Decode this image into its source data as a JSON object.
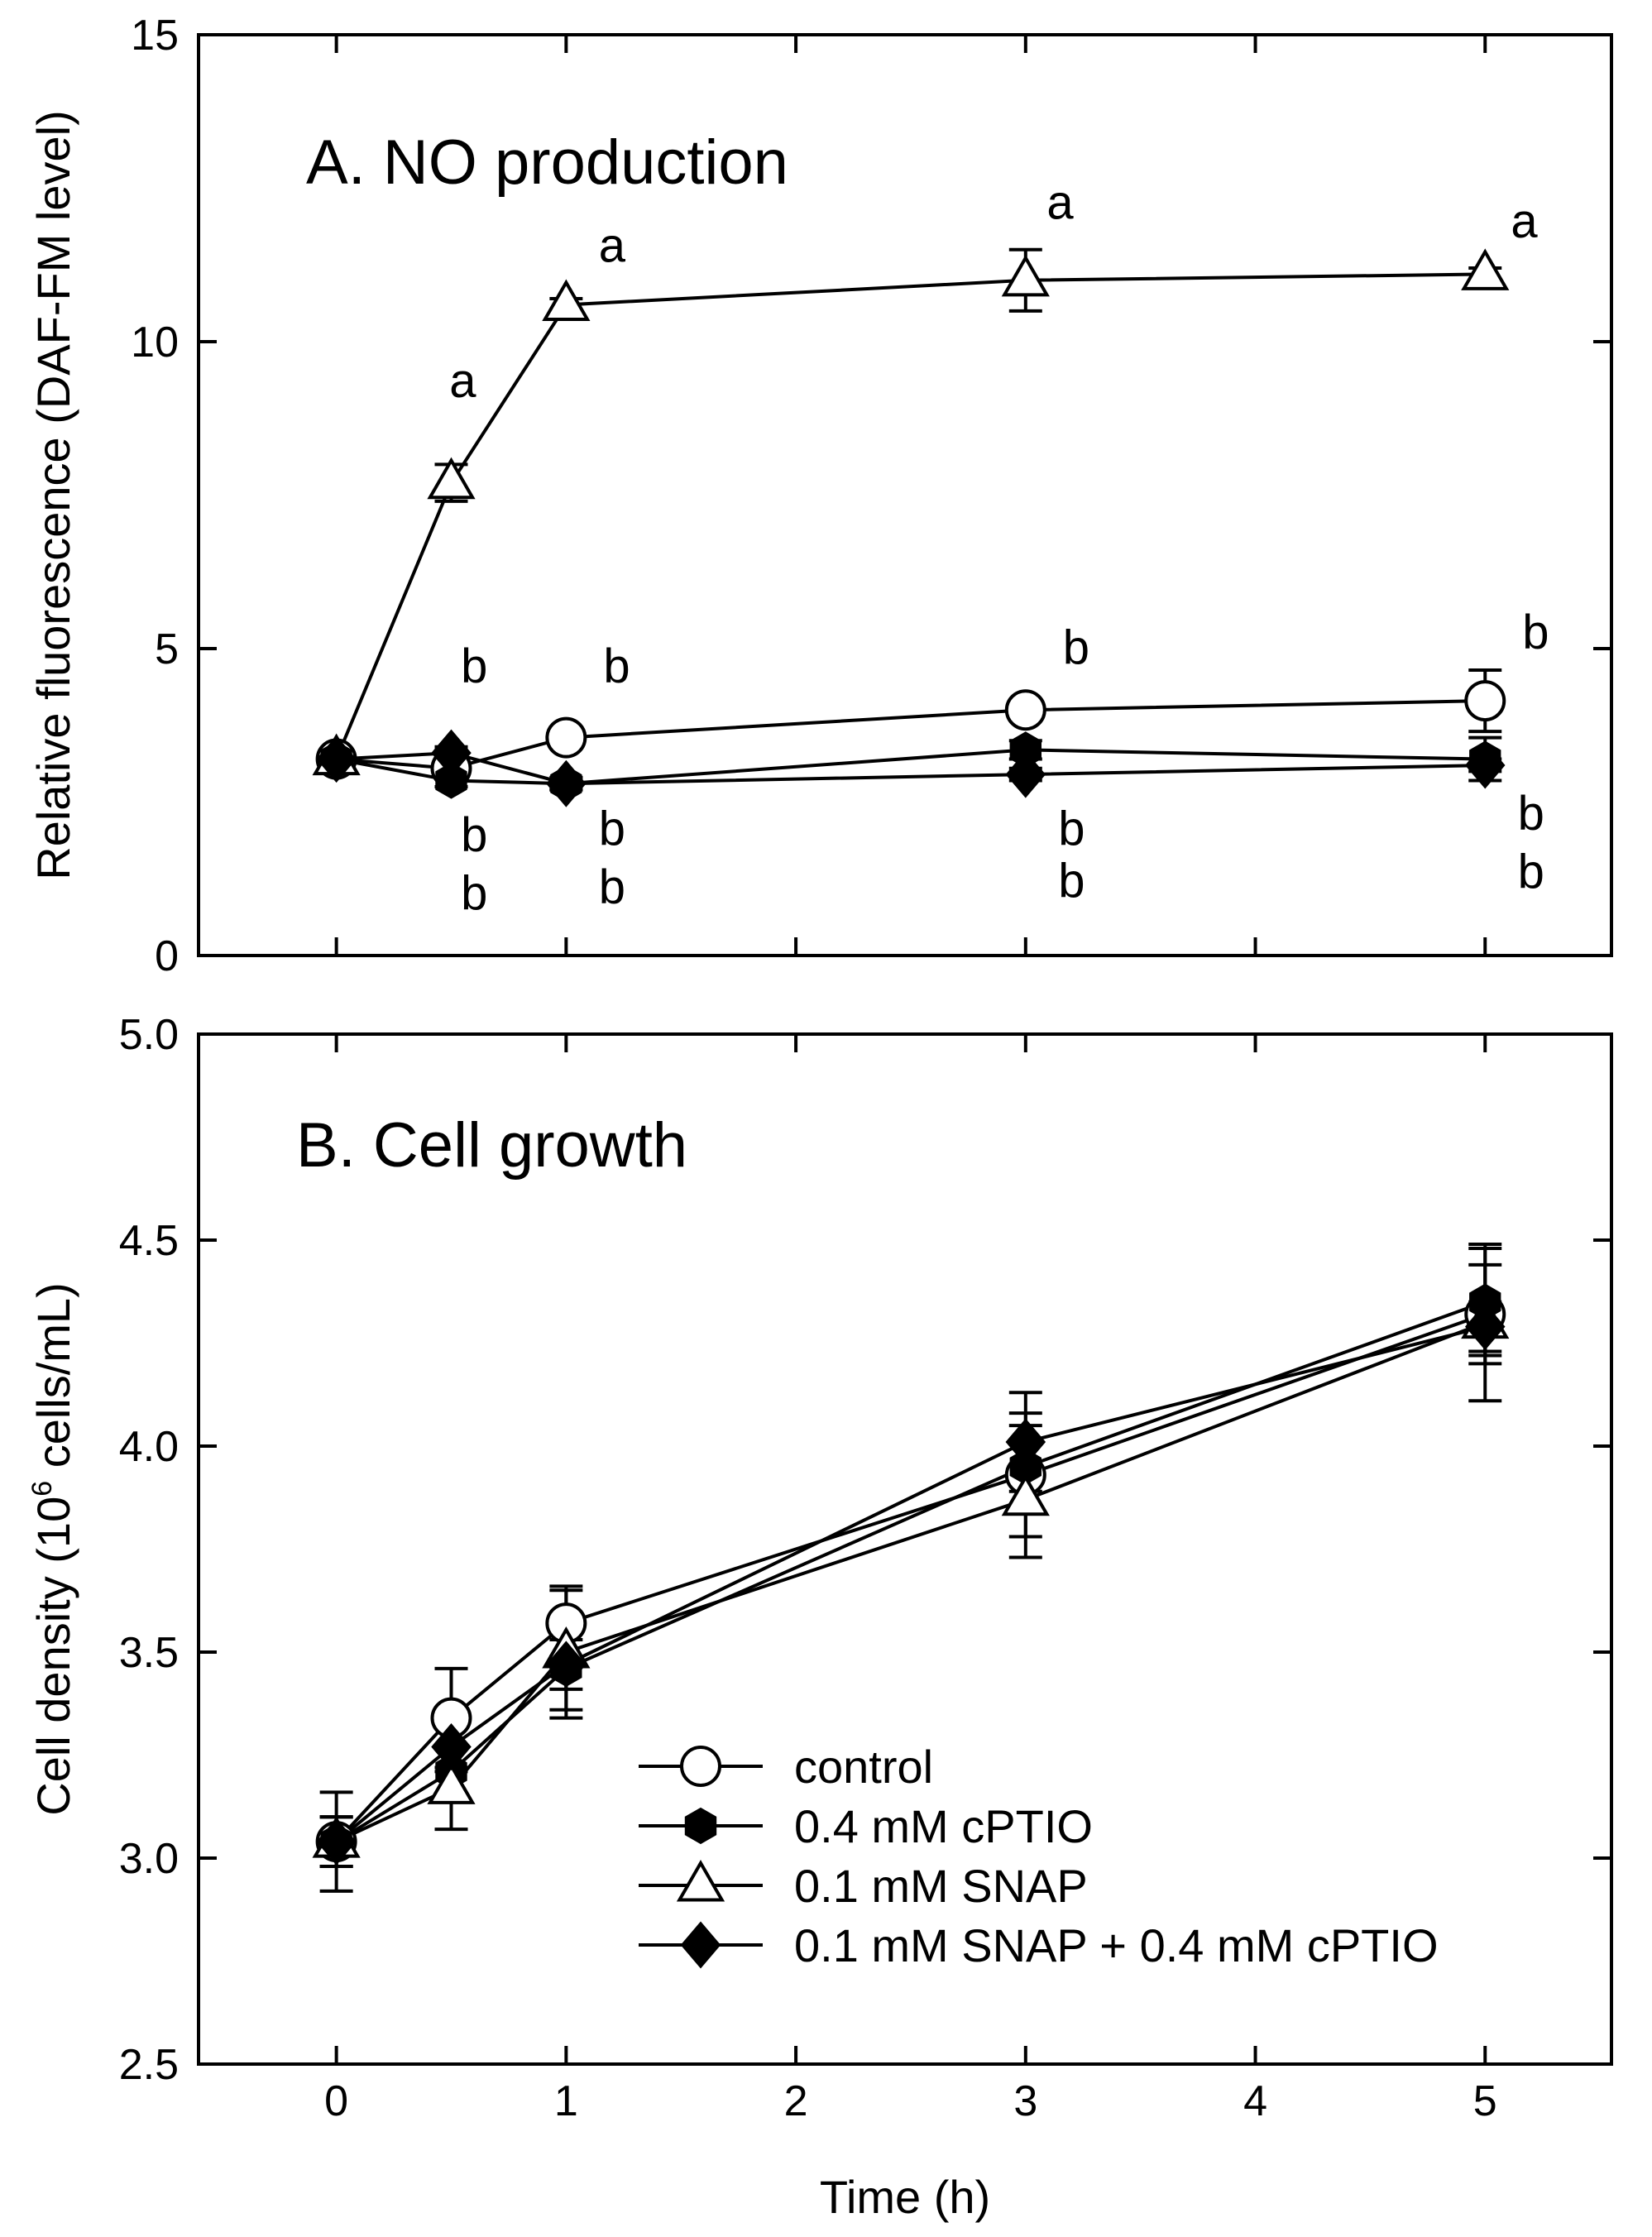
{
  "chart_data": [
    {
      "type": "line",
      "title": "A. NO production",
      "ylabel": "Relative fluorescence (DAF-FM level)",
      "xlabel": "",
      "xlim": [
        -0.6,
        5.55
      ],
      "ylim": [
        0,
        15
      ],
      "x_ticks": [
        0,
        1,
        2,
        3,
        4,
        5
      ],
      "y_ticks": [
        0,
        5,
        10,
        15
      ],
      "y_tick_labels": [
        "0",
        "5",
        "10",
        "15"
      ],
      "grid": false,
      "x": [
        0,
        0.5,
        1,
        3,
        5
      ],
      "series": [
        {
          "name": "control",
          "marker": "circle-open",
          "values": [
            3.2,
            3.05,
            3.55,
            4.0,
            4.15
          ],
          "errors": [
            0,
            0.1,
            0.1,
            0.15,
            0.5
          ]
        },
        {
          "name": "0.4 mM cPTIO",
          "marker": "hexagon-filled",
          "values": [
            3.2,
            2.85,
            2.8,
            3.35,
            3.2
          ],
          "errors": [
            0,
            0.1,
            0.1,
            0.15,
            0.35
          ]
        },
        {
          "name": "0.1 mM SNAP",
          "marker": "triangle-open",
          "values": [
            3.2,
            7.7,
            10.6,
            11.0,
            11.1
          ],
          "errors": [
            0,
            0.3,
            0.1,
            0.5,
            0.1
          ]
        },
        {
          "name": "0.1 mM SNAP + 0.4 mM cPTIO",
          "marker": "diamond-filled",
          "values": [
            3.2,
            3.3,
            2.8,
            2.95,
            3.1
          ],
          "errors": [
            0,
            0.1,
            0.1,
            0.1,
            0.1
          ]
        }
      ],
      "annotations": [
        {
          "text": "a",
          "x": 0.55,
          "y": 9.1
        },
        {
          "text": "a",
          "x": 1.2,
          "y": 11.3
        },
        {
          "text": "a",
          "x": 3.15,
          "y": 12.0
        },
        {
          "text": "a",
          "x": 5.17,
          "y": 11.7
        },
        {
          "text": "b",
          "x": 0.6,
          "y": 4.45
        },
        {
          "text": "b",
          "x": 1.22,
          "y": 4.45
        },
        {
          "text": "b",
          "x": 3.22,
          "y": 4.75
        },
        {
          "text": "b",
          "x": 5.22,
          "y": 5.0
        },
        {
          "text": "b",
          "x": 0.6,
          "y": 1.7
        },
        {
          "text": "b",
          "x": 0.6,
          "y": 0.75
        },
        {
          "text": "b",
          "x": 1.2,
          "y": 1.8
        },
        {
          "text": "b",
          "x": 1.2,
          "y": 0.85
        },
        {
          "text": "b",
          "x": 3.2,
          "y": 1.8
        },
        {
          "text": "b",
          "x": 3.2,
          "y": 0.95
        },
        {
          "text": "b",
          "x": 5.2,
          "y": 2.05
        },
        {
          "text": "b",
          "x": 5.2,
          "y": 1.1
        }
      ]
    },
    {
      "type": "line",
      "title": "B. Cell growth",
      "ylabel_main": "Cell density (10",
      "ylabel_sup": "6",
      "ylabel_tail": " cells/mL)",
      "xlabel": "Time (h)",
      "xlim": [
        -0.6,
        5.55
      ],
      "ylim": [
        2.5,
        5.0
      ],
      "x_ticks": [
        0,
        1,
        2,
        3,
        4,
        5
      ],
      "x_tick_labels": [
        "0",
        "1",
        "2",
        "3",
        "4",
        "5"
      ],
      "y_ticks": [
        2.5,
        3.0,
        3.5,
        4.0,
        4.5,
        5.0
      ],
      "y_tick_labels": [
        "2.5",
        "3.0",
        "3.5",
        "4.0",
        "4.5",
        "5.0"
      ],
      "grid": false,
      "legend_position": "bottom-right",
      "x": [
        0,
        0.5,
        1,
        3,
        5
      ],
      "series": [
        {
          "name": "control",
          "marker": "circle-open",
          "values": [
            3.04,
            3.34,
            3.57,
            3.93,
            4.32
          ],
          "errors": [
            0.12,
            0.12,
            0.08,
            0.15,
            0.12
          ]
        },
        {
          "name": "0.4 mM cPTIO",
          "marker": "hexagon-filled",
          "values": [
            3.04,
            3.21,
            3.46,
            3.95,
            4.35
          ],
          "errors": [
            0.06,
            0.06,
            0.1,
            0.1,
            0.13
          ]
        },
        {
          "name": "0.1 mM SNAP",
          "marker": "triangle-open",
          "values": [
            3.04,
            3.17,
            3.5,
            3.87,
            4.3
          ],
          "errors": [
            0.06,
            0.1,
            0.16,
            0.14,
            0.19
          ]
        },
        {
          "name": "0.1 mM SNAP + 0.4 mM cPTIO",
          "marker": "diamond-filled",
          "values": [
            3.04,
            3.27,
            3.47,
            4.01,
            4.29
          ],
          "errors": [
            0.06,
            0.06,
            0.06,
            0.12,
            0.06
          ]
        }
      ]
    }
  ]
}
